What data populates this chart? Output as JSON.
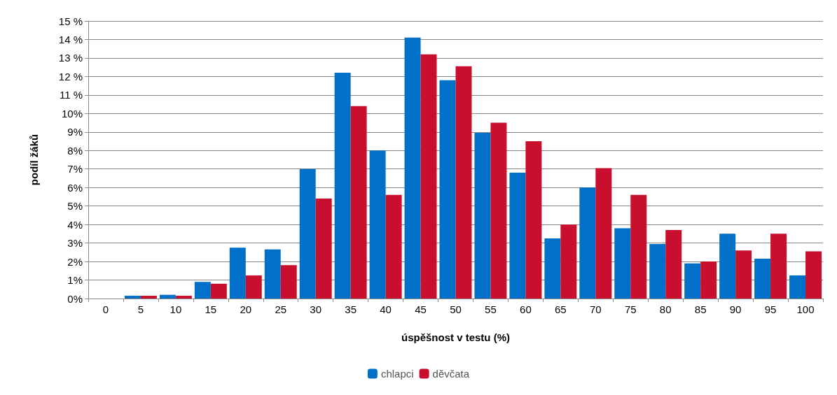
{
  "chart_data": {
    "type": "bar",
    "xlabel": "úspěšnost v testu (%)",
    "ylabel": "podíl žáků",
    "categories": [
      "0",
      "5",
      "10",
      "15",
      "20",
      "25",
      "30",
      "35",
      "40",
      "45",
      "50",
      "55",
      "60",
      "65",
      "70",
      "75",
      "80",
      "85",
      "90",
      "95",
      "100"
    ],
    "series": [
      {
        "name": "chlapci",
        "color": "#0070c8",
        "values": [
          0,
          0.15,
          0.2,
          0.9,
          2.75,
          2.65,
          7.0,
          12.2,
          8.0,
          14.1,
          11.8,
          8.95,
          6.8,
          3.25,
          6.0,
          3.8,
          2.95,
          1.9,
          3.5,
          2.15,
          1.25
        ]
      },
      {
        "name": "děvčata",
        "color": "#c8102e",
        "values": [
          0,
          0.15,
          0.15,
          0.8,
          1.25,
          1.8,
          5.4,
          10.4,
          5.6,
          13.2,
          12.55,
          9.5,
          8.5,
          4.0,
          7.05,
          5.6,
          3.7,
          2.0,
          2.6,
          3.5,
          2.55
        ]
      }
    ],
    "ylim": [
      0,
      15
    ],
    "yticks": [
      {
        "value": 0,
        "label": "0%"
      },
      {
        "value": 1,
        "label": "1%"
      },
      {
        "value": 2,
        "label": "2%"
      },
      {
        "value": 3,
        "label": "3%"
      },
      {
        "value": 4,
        "label": "4%"
      },
      {
        "value": 5,
        "label": "5%"
      },
      {
        "value": 6,
        "label": "6%"
      },
      {
        "value": 7,
        "label": "7%"
      },
      {
        "value": 8,
        "label": "8%"
      },
      {
        "value": 9,
        "label": "9%"
      },
      {
        "value": 10,
        "label": "10%"
      },
      {
        "value": 11,
        "label": "11 %"
      },
      {
        "value": 12,
        "label": "12 %"
      },
      {
        "value": 13,
        "label": "13 %"
      },
      {
        "value": 14,
        "label": "14 %"
      },
      {
        "value": 15,
        "label": "15 %"
      }
    ],
    "grid": "y",
    "legend": "bottom"
  }
}
